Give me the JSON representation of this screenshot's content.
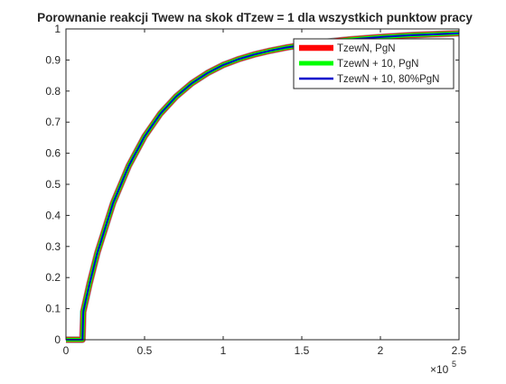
{
  "chart_data": {
    "type": "line",
    "title": "Porownanie reakcji Twew na skok dTzew = 1 dla wszystkich punktow pracy",
    "xlabel": "",
    "ylabel": "",
    "x_exponent_label": "×10",
    "x_exponent_power": "5",
    "xlim": [
      0,
      250000
    ],
    "ylim": [
      0,
      1
    ],
    "x_ticks": [
      0,
      50000,
      100000,
      150000,
      200000,
      250000
    ],
    "x_tick_labels": [
      "0",
      "0.5",
      "1",
      "1.5",
      "2",
      "2.5"
    ],
    "y_ticks": [
      0,
      0.1,
      0.2,
      0.3,
      0.4,
      0.5,
      0.6,
      0.7,
      0.8,
      0.9,
      1
    ],
    "y_tick_labels": [
      "0",
      "0.1",
      "0.2",
      "0.3",
      "0.4",
      "0.5",
      "0.6",
      "0.7",
      "0.8",
      "0.9",
      "1"
    ],
    "grid": false,
    "legend_position": "top-right",
    "series": [
      {
        "name": "TzewN, PgN",
        "color": "#ff0000",
        "x": [
          0,
          10500,
          11000,
          15000,
          20000,
          30000,
          40000,
          50000,
          60000,
          70000,
          80000,
          90000,
          100000,
          110000,
          120000,
          130000,
          140000,
          150000,
          160000,
          170000,
          180000,
          190000,
          200000,
          210000,
          220000,
          230000,
          240000,
          250000
        ],
        "values": [
          0,
          0,
          0.09,
          0.18,
          0.28,
          0.44,
          0.56,
          0.654,
          0.727,
          0.782,
          0.825,
          0.858,
          0.884,
          0.903,
          0.918,
          0.93,
          0.94,
          0.948,
          0.955,
          0.961,
          0.966,
          0.97,
          0.974,
          0.977,
          0.98,
          0.982,
          0.984,
          0.986
        ]
      },
      {
        "name": "TzewN + 10, PgN",
        "color": "#00ff00",
        "x": [
          0,
          10500,
          11000,
          15000,
          20000,
          30000,
          40000,
          50000,
          60000,
          70000,
          80000,
          90000,
          100000,
          110000,
          120000,
          130000,
          140000,
          150000,
          160000,
          170000,
          180000,
          190000,
          200000,
          210000,
          220000,
          230000,
          240000,
          250000
        ],
        "values": [
          0,
          0,
          0.09,
          0.18,
          0.28,
          0.44,
          0.56,
          0.654,
          0.727,
          0.782,
          0.825,
          0.858,
          0.884,
          0.903,
          0.918,
          0.93,
          0.94,
          0.948,
          0.955,
          0.961,
          0.966,
          0.97,
          0.974,
          0.977,
          0.98,
          0.982,
          0.984,
          0.986
        ]
      },
      {
        "name": "TzewN + 10, 80%PgN",
        "color": "#0000cc",
        "x": [
          0,
          10500,
          11000,
          15000,
          20000,
          30000,
          40000,
          50000,
          60000,
          70000,
          80000,
          90000,
          100000,
          110000,
          120000,
          130000,
          140000,
          150000,
          160000,
          170000,
          180000,
          190000,
          200000,
          210000,
          220000,
          230000,
          240000,
          250000
        ],
        "values": [
          0,
          0,
          0.09,
          0.18,
          0.28,
          0.44,
          0.56,
          0.654,
          0.727,
          0.782,
          0.825,
          0.858,
          0.884,
          0.903,
          0.918,
          0.93,
          0.94,
          0.948,
          0.955,
          0.961,
          0.966,
          0.97,
          0.974,
          0.977,
          0.98,
          0.982,
          0.984,
          0.986
        ]
      }
    ]
  }
}
